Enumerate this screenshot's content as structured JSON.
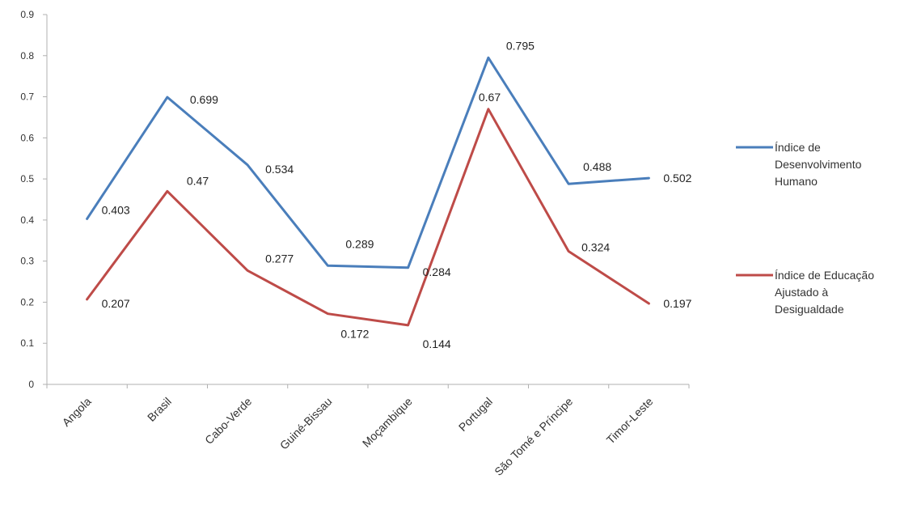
{
  "chart_data": {
    "type": "line",
    "categories": [
      "Angola",
      "Brasil",
      "Cabo-Verde",
      "Guiné-Bissau",
      "Moçambique",
      "Portugal",
      "São Tomé e Príncipe",
      "Timor-Leste"
    ],
    "ylim": [
      0,
      0.9
    ],
    "y_ticks": [
      "0",
      "0.1",
      "0.2",
      "0.3",
      "0.4",
      "0.5",
      "0.6",
      "0.7",
      "0.8",
      "0.9"
    ],
    "grid": false,
    "legend_position": "right",
    "series": [
      {
        "name": "Índice de Desenvolvimento Humano",
        "legend_lines": [
          "Índice de",
          "Desenvolvimento",
          "Humano"
        ],
        "color": "#4a7ebb",
        "values": [
          0.403,
          0.699,
          0.534,
          0.289,
          0.284,
          0.795,
          0.488,
          0.502
        ],
        "labels": [
          "0.403",
          "0.699",
          "0.534",
          "0.289",
          "0.284",
          "0.795",
          "0.488",
          "0.502"
        ]
      },
      {
        "name": "Índice de Educação Ajustado à Desigualdade",
        "legend_lines": [
          "Índice de Educação",
          "Ajustado à",
          "Desigualdade"
        ],
        "color": "#be4b48",
        "values": [
          0.207,
          0.47,
          0.277,
          0.172,
          0.144,
          0.67,
          0.324,
          0.197
        ],
        "labels": [
          "0.207",
          "0.47",
          "0.277",
          "0.172",
          "0.144",
          "0.67",
          "0.324",
          "0.197"
        ]
      }
    ]
  }
}
